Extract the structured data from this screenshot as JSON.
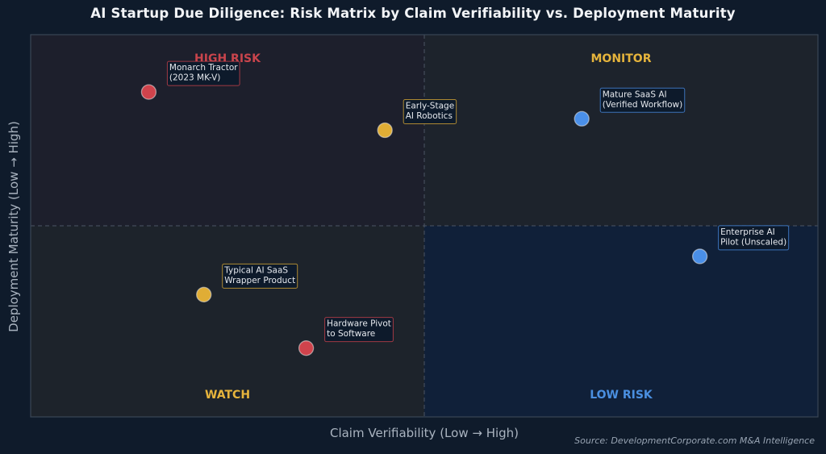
{
  "chart_data": {
    "type": "scatter",
    "title": "AI Startup Due Diligence: Risk Matrix by Claim Verifiability vs. Deployment Maturity",
    "xlabel": "Claim Verifiability  (Low → High)",
    "ylabel": "Deployment Maturity  (Low → High)",
    "xlim": [
      0,
      10
    ],
    "ylim": [
      0,
      10
    ],
    "midpoint": {
      "x": 5,
      "y": 5
    },
    "grid": false,
    "quadrants": [
      {
        "id": "high-risk",
        "label": "HIGH RISK",
        "position": "top-left",
        "fill": "#1d1f2c",
        "color": "#c9444c"
      },
      {
        "id": "monitor",
        "label": "MONITOR",
        "position": "top-right",
        "fill": "#1d232c",
        "color": "#e6b43c"
      },
      {
        "id": "watch",
        "label": "WATCH",
        "position": "bottom-left",
        "fill": "#1d232b",
        "color": "#e6b43c"
      },
      {
        "id": "low-risk",
        "label": "LOW RISK",
        "position": "bottom-right",
        "fill": "#102039",
        "color": "#4a8fe0"
      }
    ],
    "points": [
      {
        "label": "Monarch Tractor\n(2023 MK-V)",
        "x": 1.5,
        "y": 8.5,
        "color": "#d0434c",
        "category": "high-risk"
      },
      {
        "label": "Early-Stage\nAI Robotics",
        "x": 4.5,
        "y": 7.5,
        "color": "#e0ad35",
        "category": "monitor"
      },
      {
        "label": "Mature SaaS AI\n(Verified Workflow)",
        "x": 7.0,
        "y": 7.8,
        "color": "#4a8fe8",
        "category": "low-risk"
      },
      {
        "label": "Enterprise AI\nPilot (Unscaled)",
        "x": 8.5,
        "y": 4.2,
        "color": "#4a8fe8",
        "category": "low-risk"
      },
      {
        "label": "Typical AI SaaS\nWrapper Product",
        "x": 2.2,
        "y": 3.2,
        "color": "#e0ad35",
        "category": "monitor"
      },
      {
        "label": "Hardware Pivot\nto Software",
        "x": 3.5,
        "y": 1.8,
        "color": "#d0434c",
        "category": "high-risk"
      }
    ],
    "source": "Source: DevelopmentCorporate.com M&A Intelligence"
  }
}
